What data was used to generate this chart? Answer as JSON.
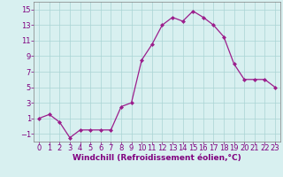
{
  "x": [
    0,
    1,
    2,
    3,
    4,
    5,
    6,
    7,
    8,
    9,
    10,
    11,
    12,
    13,
    14,
    15,
    16,
    17,
    18,
    19,
    20,
    21,
    22,
    23
  ],
  "y": [
    1,
    1.5,
    0.5,
    -1.5,
    -0.5,
    -0.5,
    -0.5,
    -0.5,
    2.5,
    3.0,
    8.5,
    10.5,
    13.0,
    14.0,
    13.5,
    14.8,
    14.0,
    13.0,
    11.5,
    8.0,
    6.0,
    6.0,
    6.0,
    5.0
  ],
  "line_color": "#9b1e8c",
  "marker": "D",
  "marker_size": 2.0,
  "line_width": 0.9,
  "xlabel": "Windchill (Refroidissement éolien,°C)",
  "xlim": [
    -0.5,
    23.5
  ],
  "ylim": [
    -2,
    16
  ],
  "yticks": [
    -1,
    1,
    3,
    5,
    7,
    9,
    11,
    13,
    15
  ],
  "xticks": [
    0,
    1,
    2,
    3,
    4,
    5,
    6,
    7,
    8,
    9,
    10,
    11,
    12,
    13,
    14,
    15,
    16,
    17,
    18,
    19,
    20,
    21,
    22,
    23
  ],
  "grid_color": "#aad4d4",
  "background_color": "#d8f0f0",
  "tick_label_color": "#800080",
  "xlabel_color": "#800080",
  "xlabel_fontsize": 6.5,
  "tick_fontsize": 6.0,
  "grid_linewidth": 0.5,
  "spine_color": "#808080"
}
